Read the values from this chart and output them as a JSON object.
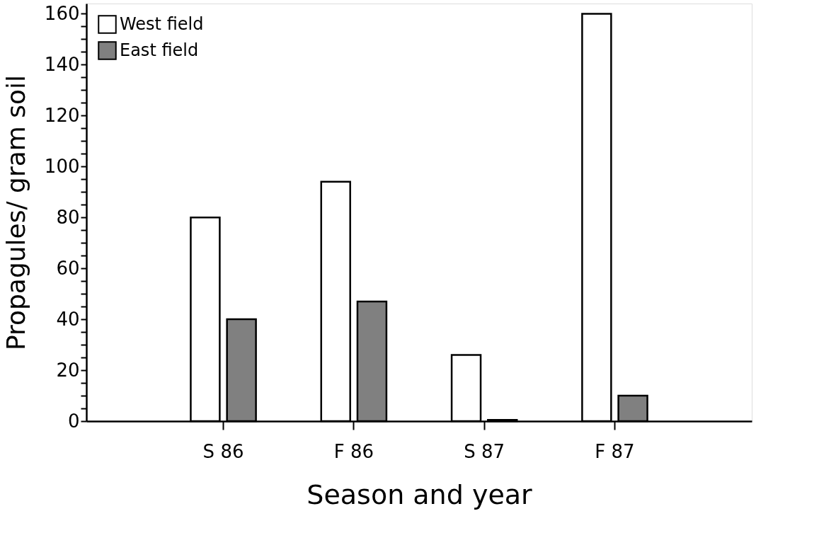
{
  "chart_data": {
    "type": "bar",
    "xlabel": "Season and year",
    "ylabel": "Propagules/ gram soil",
    "categories": [
      "S 86",
      "F 86",
      "S 87",
      "F 87"
    ],
    "series": [
      {
        "name": "West field",
        "color": "#ffffff",
        "values": [
          80,
          94,
          26,
          160
        ]
      },
      {
        "name": "East field",
        "color": "#808080",
        "values": [
          40,
          47,
          0.5,
          10
        ]
      }
    ],
    "ylim": [
      0,
      164
    ],
    "yticks": [
      0,
      {
        "value": 5,
        "label": null
      },
      {
        "value": 10,
        "label": null
      },
      {
        "value": 15,
        "label": null
      },
      20,
      {
        "value": 25,
        "label": null
      },
      {
        "value": 30,
        "label": null
      },
      {
        "value": 35,
        "label": null
      },
      40,
      {
        "value": 45,
        "label": null
      },
      {
        "value": 50,
        "label": null
      },
      {
        "value": 55,
        "label": null
      },
      60,
      {
        "value": 65,
        "label": null
      },
      {
        "value": 70,
        "label": null
      },
      {
        "value": 75,
        "label": null
      },
      80,
      {
        "value": 85,
        "label": null
      },
      {
        "value": 90,
        "label": null
      },
      {
        "value": 95,
        "label": null
      },
      100,
      {
        "value": 105,
        "label": null
      },
      {
        "value": 110,
        "label": null
      },
      {
        "value": 115,
        "label": null
      },
      120,
      {
        "value": 125,
        "label": null
      },
      {
        "value": 130,
        "label": null
      },
      {
        "value": 135,
        "label": null
      },
      140,
      {
        "value": 145,
        "label": null
      },
      {
        "value": 150,
        "label": null
      },
      {
        "value": 155,
        "label": null
      },
      160
    ],
    "legend": "top left",
    "grid": false
  }
}
